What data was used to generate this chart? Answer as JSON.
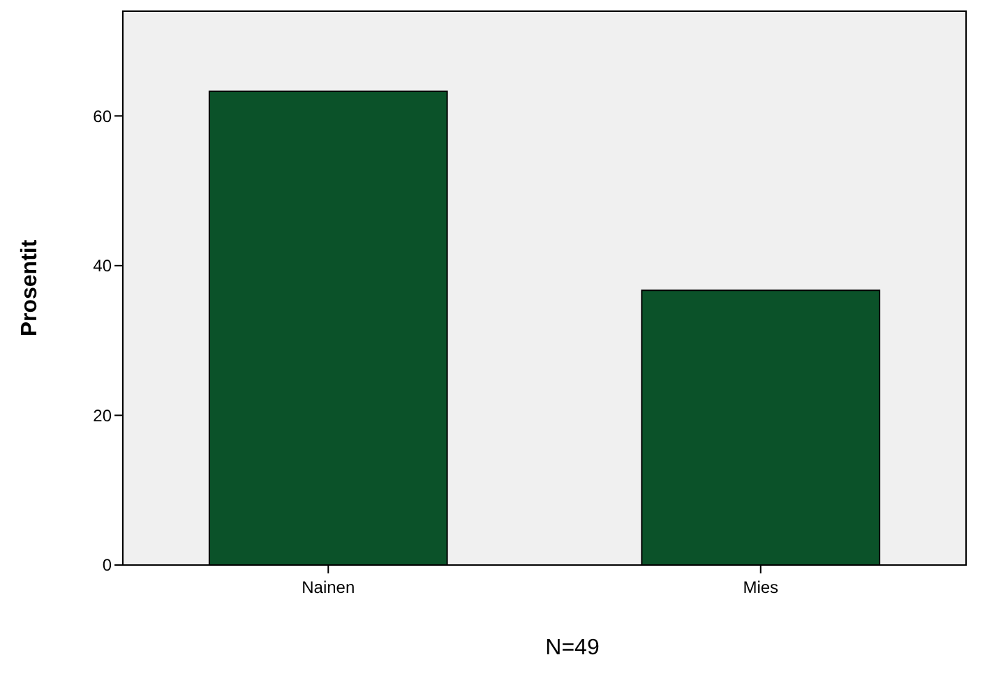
{
  "chart_data": {
    "type": "bar",
    "ylabel": "Prosentit",
    "categories": [
      "Nainen",
      "Mies"
    ],
    "values": [
      63.3,
      36.7
    ],
    "color": "#0b5229",
    "ylim": [
      0,
      74
    ],
    "yticks": [
      0,
      20,
      40,
      60
    ],
    "grid": false,
    "annotations": [
      "N=49"
    ]
  }
}
